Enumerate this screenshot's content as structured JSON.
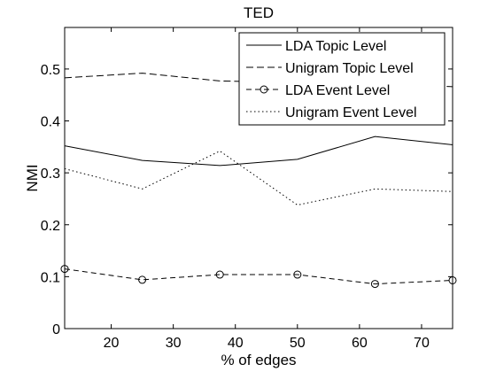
{
  "chart_data": {
    "type": "line",
    "title": "TED",
    "xlabel": "% of edges",
    "ylabel": "NMI",
    "xlim": [
      12.5,
      75
    ],
    "ylim": [
      0,
      0.58
    ],
    "xticks": [
      20,
      30,
      40,
      50,
      60,
      70
    ],
    "yticks": [
      0,
      0.1,
      0.2,
      0.3,
      0.4,
      0.5
    ],
    "ytick_labels": [
      "0",
      "0.1",
      "0.2",
      "0.3",
      "0.4",
      "0.5"
    ],
    "grid": false,
    "legend_position": "top-right",
    "x": [
      12.5,
      25,
      37.5,
      50,
      62.5,
      75
    ],
    "series": [
      {
        "name": "LDA Topic Level",
        "style": "solid",
        "marker": "none",
        "color": "#000000",
        "values": [
          0.352,
          0.324,
          0.314,
          0.326,
          0.37,
          0.354
        ]
      },
      {
        "name": "Unigram Topic Level",
        "style": "dashed",
        "marker": "none",
        "color": "#000000",
        "values": [
          0.483,
          0.492,
          0.477,
          0.474,
          0.47,
          0.466
        ]
      },
      {
        "name": "LDA Event Level",
        "style": "dash-dot",
        "marker": "circle",
        "color": "#000000",
        "values": [
          0.115,
          0.094,
          0.104,
          0.104,
          0.086,
          0.093
        ]
      },
      {
        "name": "Unigram Event Level",
        "style": "dotted",
        "marker": "none",
        "color": "#000000",
        "values": [
          0.308,
          0.269,
          0.342,
          0.238,
          0.269,
          0.264
        ]
      }
    ]
  }
}
